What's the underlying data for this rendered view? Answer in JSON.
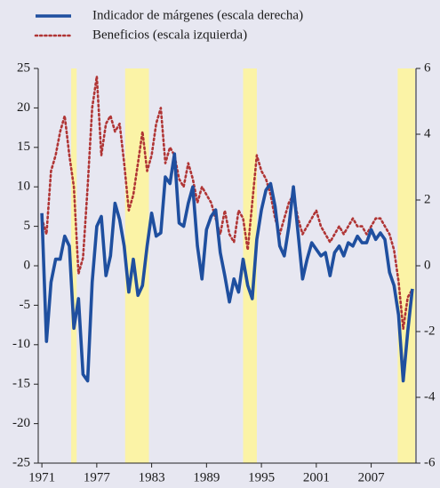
{
  "chart_data": {
    "type": "line",
    "x": [
      1971,
      1971.5,
      1972,
      1972.5,
      1973,
      1973.5,
      1974,
      1974.5,
      1975,
      1975.5,
      1976,
      1976.5,
      1977,
      1977.5,
      1978,
      1978.5,
      1979,
      1979.5,
      1980,
      1980.5,
      1981,
      1981.5,
      1982,
      1982.5,
      1983,
      1983.5,
      1984,
      1984.5,
      1985,
      1985.5,
      1986,
      1986.5,
      1987,
      1987.5,
      1988,
      1988.5,
      1989,
      1989.5,
      1990,
      1990.5,
      1991,
      1991.5,
      1992,
      1992.5,
      1993,
      1993.5,
      1994,
      1994.5,
      1995,
      1995.5,
      1996,
      1996.5,
      1997,
      1997.5,
      1998,
      1998.5,
      1999,
      1999.5,
      2000,
      2000.5,
      2001,
      2001.5,
      2002,
      2002.5,
      2003,
      2003.5,
      2004,
      2004.5,
      2005,
      2005.5,
      2006,
      2006.5,
      2007,
      2007.5,
      2008,
      2008.5,
      2009,
      2009.5,
      2010,
      2010.5,
      2011,
      2011.5
    ],
    "series": [
      {
        "name": "Indicador de márgenes (escala derecha)",
        "color": "#1f4f9f",
        "axis": "y2",
        "style": "solid",
        "values": [
          1.6,
          -2.3,
          -0.5,
          0.2,
          0.2,
          0.9,
          0.6,
          -1.9,
          -1.0,
          -3.3,
          -3.5,
          -0.5,
          1.2,
          1.5,
          -0.3,
          0.3,
          1.9,
          1.4,
          0.6,
          -0.8,
          0.2,
          -0.9,
          -0.6,
          0.6,
          1.6,
          0.9,
          1.0,
          2.7,
          2.5,
          3.4,
          1.3,
          1.2,
          1.9,
          2.4,
          0.6,
          -0.4,
          1.1,
          1.5,
          1.7,
          0.4,
          -0.3,
          -1.1,
          -0.4,
          -0.8,
          0.2,
          -0.6,
          -1.0,
          0.8,
          1.7,
          2.3,
          2.5,
          1.8,
          0.6,
          0.3,
          1.2,
          2.4,
          1.0,
          -0.4,
          0.2,
          0.7,
          0.5,
          0.3,
          0.4,
          -0.3,
          0.4,
          0.6,
          0.3,
          0.7,
          0.6,
          0.9,
          0.7,
          0.7,
          1.1,
          0.8,
          1.0,
          0.8,
          -0.2,
          -0.6,
          -1.5,
          -3.5,
          -2.0,
          -0.7
        ]
      },
      {
        "name": "Beneficios (escala izquierda)",
        "color": "#b03535",
        "axis": "y",
        "style": "dotted",
        "values": [
          6,
          4,
          12,
          14,
          17,
          19,
          14,
          10,
          -1,
          1,
          10,
          20,
          24,
          14,
          18,
          19,
          17,
          18,
          13,
          7,
          9,
          13,
          17,
          12,
          14,
          18,
          20,
          13,
          15,
          14,
          11,
          10,
          13,
          11,
          8,
          10,
          9,
          8,
          6,
          4,
          7,
          4,
          3,
          7,
          6,
          2,
          8,
          14,
          12,
          11,
          9,
          6,
          4,
          6,
          8,
          9,
          6,
          4,
          5,
          6,
          7,
          5,
          4,
          3,
          4,
          5,
          4,
          5,
          6,
          5,
          5,
          4,
          5,
          6,
          6,
          5,
          4,
          2,
          -2,
          -8,
          -4,
          -3
        ]
      }
    ],
    "xlim": [
      1970.6,
      2011.9
    ],
    "xticks": [
      1971,
      1977,
      1983,
      1989,
      1995,
      2001,
      2007
    ],
    "ylim": [
      -25,
      25
    ],
    "yticks": [
      25,
      20,
      15,
      10,
      5,
      0,
      -5,
      -10,
      -15,
      -20,
      -25
    ],
    "y2lim": [
      -6,
      6
    ],
    "y2ticks": [
      6,
      4,
      2,
      0,
      -2,
      -4,
      -6
    ],
    "shaded_periods": [
      [
        1974.2,
        1974.8
      ],
      [
        1980.1,
        1982.7
      ],
      [
        1993.0,
        1994.5
      ],
      [
        2009.9,
        2011.8
      ]
    ],
    "shade_color": "#fbf3a6"
  }
}
